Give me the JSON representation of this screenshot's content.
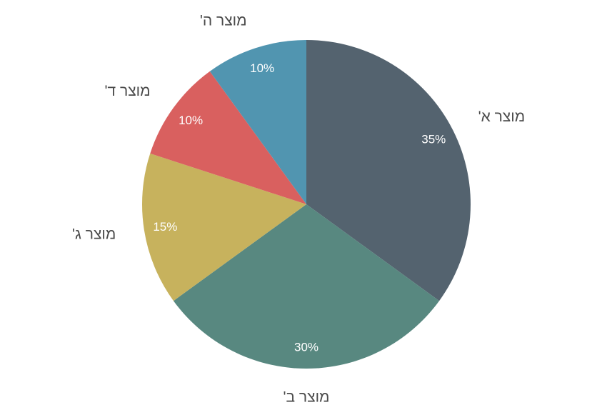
{
  "chart_data": {
    "type": "pie",
    "title": "",
    "unit": "%",
    "start_angle_deg": 0,
    "direction": "clockwise",
    "slices": [
      {
        "label": "מוצר א'",
        "value": 35,
        "value_label": "35%",
        "color": "#54636f"
      },
      {
        "label": "מוצר ב'",
        "value": 30,
        "value_label": "30%",
        "color": "#588880"
      },
      {
        "label": "מוצר ג'",
        "value": 15,
        "value_label": "15%",
        "color": "#c7b25d"
      },
      {
        "label": "מוצר ד'",
        "value": 10,
        "value_label": "10%",
        "color": "#d9605f"
      },
      {
        "label": "מוצר ה'",
        "value": 10,
        "value_label": "10%",
        "color": "#5195b0"
      }
    ]
  }
}
